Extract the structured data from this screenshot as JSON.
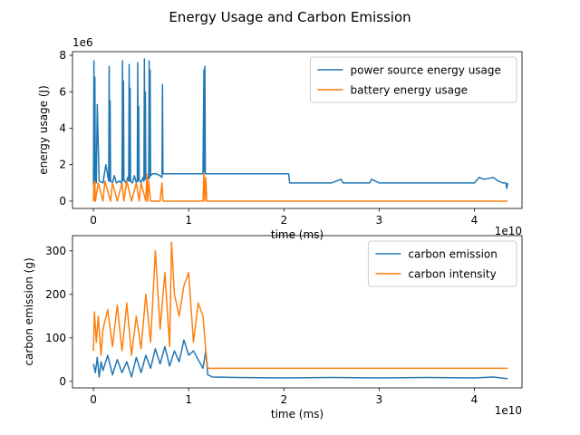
{
  "suptitle": "Energy Usage and Carbon Emission",
  "colors": {
    "blue": "#1f77b4",
    "orange": "#ff7f0e"
  },
  "chart_data": [
    {
      "type": "line",
      "ylabel": "energy usage (J)",
      "xlabel": "time (ms)",
      "x_scale_label": "1e10",
      "y_scale_label": "1e6",
      "xlim": [
        -0.22,
        4.5
      ],
      "ylim": [
        -0.4,
        8.2
      ],
      "x_ticks": [
        0,
        1,
        2,
        3,
        4
      ],
      "y_ticks": [
        0,
        2,
        4,
        6,
        8
      ],
      "legend": "top-right",
      "series": [
        {
          "name": "power source energy usage",
          "color": "#1f77b4",
          "x": [
            0,
            0.005,
            0.01,
            0.015,
            0.02,
            0.03,
            0.04,
            0.06,
            0.1,
            0.13,
            0.16,
            0.165,
            0.17,
            0.175,
            0.18,
            0.2,
            0.22,
            0.24,
            0.27,
            0.29,
            0.3,
            0.305,
            0.31,
            0.315,
            0.32,
            0.34,
            0.36,
            0.37,
            0.375,
            0.38,
            0.385,
            0.39,
            0.41,
            0.43,
            0.45,
            0.46,
            0.465,
            0.47,
            0.475,
            0.48,
            0.5,
            0.52,
            0.53,
            0.535,
            0.54,
            0.545,
            0.55,
            0.57,
            0.58,
            0.585,
            0.59,
            0.595,
            0.6,
            0.62,
            0.66,
            0.7,
            0.72,
            0.725,
            0.73,
            0.75,
            0.8,
            0.9,
            1.0,
            1.1,
            1.15,
            1.16,
            1.165,
            1.17,
            1.175,
            1.18,
            1.19,
            1.2,
            1.3,
            1.5,
            1.7,
            1.9,
            2.0,
            2.05,
            2.06,
            2.1,
            2.2,
            2.5,
            2.6,
            2.62,
            2.7,
            2.9,
            2.92,
            3.0,
            3.2,
            3.5,
            3.8,
            3.9,
            4.0,
            4.05,
            4.1,
            4.2,
            4.25,
            4.3,
            4.33,
            4.34,
            4.35
          ],
          "y": [
            0.9,
            7.7,
            1.0,
            6.8,
            1.3,
            1.0,
            5.3,
            1.1,
            1.0,
            2.0,
            1.1,
            7.4,
            1.1,
            5.5,
            1.1,
            1.0,
            1.4,
            1.0,
            1.1,
            1.0,
            1.2,
            7.7,
            1.1,
            6.6,
            1.2,
            1.0,
            1.3,
            1.1,
            7.5,
            1.1,
            6.2,
            1.1,
            1.0,
            1.4,
            1.0,
            1.1,
            7.6,
            1.1,
            5.2,
            1.2,
            1.0,
            1.3,
            1.1,
            7.8,
            1.2,
            6.0,
            1.2,
            1.3,
            1.2,
            7.7,
            1.3,
            7.2,
            1.4,
            1.5,
            1.5,
            1.4,
            1.3,
            6.4,
            1.5,
            1.5,
            1.5,
            1.5,
            1.5,
            1.5,
            1.5,
            7.2,
            1.6,
            7.4,
            1.5,
            1.5,
            1.5,
            1.5,
            1.5,
            1.5,
            1.5,
            1.5,
            1.5,
            1.5,
            1.0,
            1.0,
            1.0,
            1.0,
            1.2,
            1.0,
            1.0,
            1.0,
            1.2,
            1.0,
            1.0,
            1.0,
            1.0,
            1.0,
            1.0,
            1.3,
            1.2,
            1.3,
            1.1,
            1.0,
            1.0,
            0.7,
            1.0
          ]
        },
        {
          "name": "battery energy usage",
          "color": "#ff7f0e",
          "x": [
            0,
            0.005,
            0.01,
            0.015,
            0.02,
            0.05,
            0.1,
            0.12,
            0.18,
            0.2,
            0.25,
            0.3,
            0.32,
            0.35,
            0.4,
            0.45,
            0.48,
            0.5,
            0.55,
            0.56,
            0.57,
            0.58,
            0.6,
            0.62,
            0.7,
            0.72,
            0.73,
            0.75,
            1.15,
            1.16,
            1.17,
            1.18,
            1.19,
            1.2,
            2.0,
            3.0,
            4.0,
            4.35
          ],
          "y": [
            0,
            1.0,
            0,
            1.1,
            0,
            1.0,
            0,
            1.1,
            0,
            1.0,
            0,
            1.0,
            0,
            1.1,
            0,
            1.0,
            0,
            1.0,
            0,
            1.5,
            0,
            1.1,
            0,
            0,
            0,
            1.0,
            0,
            0,
            0,
            1.5,
            0,
            1.3,
            0,
            0,
            0,
            0,
            0,
            0
          ]
        }
      ]
    },
    {
      "type": "line",
      "ylabel": "carbon emission (g)",
      "xlabel": "time (ms)",
      "x_scale_label": "1e10",
      "xlim": [
        -0.22,
        4.5
      ],
      "ylim": [
        -15,
        335
      ],
      "x_ticks": [
        0,
        1,
        2,
        3,
        4
      ],
      "y_ticks": [
        0,
        100,
        200,
        300
      ],
      "legend": "top-right",
      "series": [
        {
          "name": "carbon emission",
          "color": "#1f77b4",
          "x": [
            0,
            0.02,
            0.04,
            0.06,
            0.08,
            0.1,
            0.15,
            0.2,
            0.25,
            0.3,
            0.35,
            0.4,
            0.45,
            0.5,
            0.55,
            0.6,
            0.65,
            0.7,
            0.75,
            0.8,
            0.85,
            0.9,
            0.95,
            1.0,
            1.05,
            1.1,
            1.15,
            1.18,
            1.2,
            1.25,
            1.5,
            2.0,
            2.5,
            3.0,
            3.5,
            4.0,
            4.2,
            4.35
          ],
          "y": [
            40,
            20,
            55,
            10,
            45,
            25,
            60,
            15,
            50,
            20,
            45,
            10,
            55,
            20,
            60,
            30,
            75,
            40,
            80,
            35,
            70,
            45,
            95,
            60,
            70,
            50,
            30,
            70,
            15,
            10,
            9,
            8,
            9,
            8,
            9,
            8,
            10,
            6
          ]
        },
        {
          "name": "carbon intensity",
          "color": "#ff7f0e",
          "x": [
            0,
            0.01,
            0.03,
            0.05,
            0.08,
            0.1,
            0.15,
            0.2,
            0.25,
            0.3,
            0.35,
            0.4,
            0.45,
            0.5,
            0.55,
            0.6,
            0.65,
            0.7,
            0.75,
            0.8,
            0.82,
            0.85,
            0.9,
            0.95,
            1.0,
            1.05,
            1.1,
            1.15,
            1.18,
            1.2,
            1.25,
            1.5,
            2.0,
            3.0,
            4.0,
            4.35
          ],
          "y": [
            70,
            160,
            90,
            150,
            60,
            120,
            165,
            80,
            175,
            70,
            180,
            60,
            150,
            75,
            200,
            90,
            300,
            120,
            250,
            80,
            320,
            200,
            150,
            220,
            250,
            90,
            180,
            150,
            70,
            30,
            30,
            30,
            30,
            30,
            30,
            30
          ]
        }
      ]
    }
  ]
}
